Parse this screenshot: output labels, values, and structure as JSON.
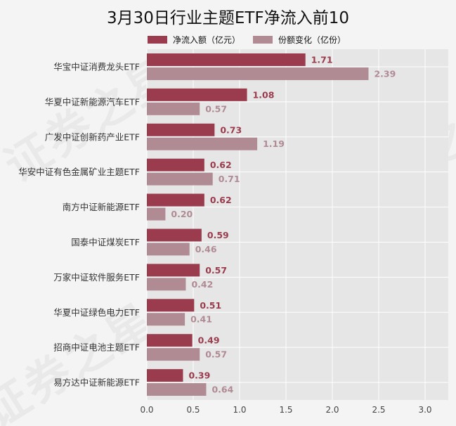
{
  "title": "3月30日行业主题ETF净流入前10",
  "watermark_text": "证券之星",
  "colors": {
    "net_inflow": "#9a3c4d",
    "share_change": "#b08b94",
    "plot_bg": "#e6e6e6",
    "grid": "#ffffff",
    "page_bg": "#f4f4f4"
  },
  "chart_data": {
    "type": "bar",
    "orientation": "horizontal",
    "categories": [
      "华宝中证消费龙头ETF",
      "华夏中证新能源汽车ETF",
      "广发中证创新药产业ETF",
      "华安中证有色金属矿业主题ETF",
      "南方中证新能源ETF",
      "国泰中证煤炭ETF",
      "万家中证软件服务ETF",
      "华夏中证绿色电力ETF",
      "招商中证电池主题ETF",
      "易方达中证新能源ETF"
    ],
    "series": [
      {
        "name": "净流入额（亿元）",
        "values": [
          1.71,
          1.08,
          0.73,
          0.62,
          0.62,
          0.59,
          0.57,
          0.51,
          0.49,
          0.39
        ],
        "labels": [
          "1.71",
          "1.08",
          "0.73",
          "0.62",
          "0.62",
          "0.59",
          "0.57",
          "0.51",
          "0.49",
          "0.39"
        ]
      },
      {
        "name": "份额变化（亿份）",
        "values": [
          2.39,
          0.57,
          1.19,
          0.71,
          0.2,
          0.46,
          0.42,
          0.41,
          0.57,
          0.64
        ],
        "labels": [
          "2.39",
          "0.57",
          "1.19",
          "0.71",
          "0.20",
          "0.46",
          "0.42",
          "0.41",
          "0.57",
          "0.64"
        ]
      }
    ],
    "xlim": [
      0,
      3.25
    ],
    "xticks": [
      0.0,
      0.5,
      1.0,
      1.5,
      2.0,
      2.5,
      3.0
    ],
    "xtick_labels": [
      "0.0",
      "0.5",
      "1.0",
      "1.5",
      "2.0",
      "2.5",
      "3.0"
    ],
    "grid": true,
    "legend_position": "top"
  }
}
